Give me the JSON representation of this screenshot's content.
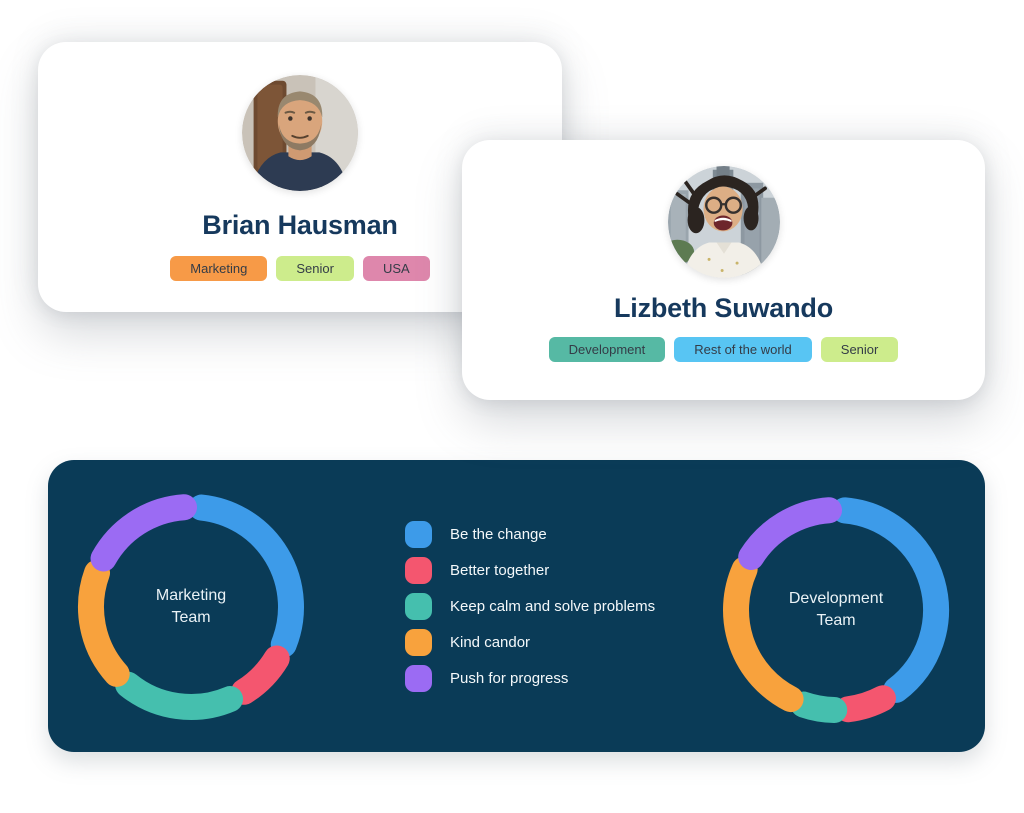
{
  "palette": {
    "blue": "#3D9BE9",
    "pink": "#F4566F",
    "teal": "#45BFAE",
    "orange": "#F8A23D",
    "purple": "#9B6BF3",
    "panel_bg": "#0A3B57",
    "name_color": "#16395D"
  },
  "cards": [
    {
      "name": "Brian Hausman",
      "avatar": "man-with-beard-portrait",
      "tags": [
        {
          "label": "Marketing",
          "color": "#F79A47"
        },
        {
          "label": "Senior",
          "color": "#CDEC8C"
        },
        {
          "label": "USA",
          "color": "#DE87AC"
        }
      ]
    },
    {
      "name": "Lizbeth Suwando",
      "avatar": "laughing-woman-city-portrait",
      "tags": [
        {
          "label": "Development",
          "color": "#56B9A4"
        },
        {
          "label": "Rest of the world",
          "color": "#58C5F3"
        },
        {
          "label": "Senior",
          "color": "#CDEC8C"
        }
      ]
    }
  ],
  "panel": {
    "legend": [
      {
        "label": "Be the change",
        "color": "blue"
      },
      {
        "label": "Better together",
        "color": "pink"
      },
      {
        "label": "Keep calm and solve problems",
        "color": "teal"
      },
      {
        "label": "Kind candor",
        "color": "orange"
      },
      {
        "label": "Push for progress",
        "color": "purple"
      }
    ]
  },
  "chart_data": [
    {
      "type": "donut",
      "title": "Marketing Team",
      "title_lines": [
        "Marketing",
        "Team"
      ],
      "legend_position": "right-of-chart",
      "segments": [
        {
          "label": "Be the change",
          "color": "blue",
          "start_deg": 6,
          "end_deg": 112
        },
        {
          "label": "Better together",
          "color": "pink",
          "start_deg": 121,
          "end_deg": 148
        },
        {
          "label": "Keep calm and solve problems",
          "color": "teal",
          "start_deg": 157,
          "end_deg": 219
        },
        {
          "label": "Kind candor",
          "color": "orange",
          "start_deg": 228,
          "end_deg": 290
        },
        {
          "label": "Push for progress",
          "color": "purple",
          "start_deg": 299,
          "end_deg": 356
        }
      ]
    },
    {
      "type": "donut",
      "title": "Development Team",
      "title_lines": [
        "Development",
        "Team"
      ],
      "legend_position": "left-of-chart",
      "segments": [
        {
          "label": "Be the change",
          "color": "blue",
          "start_deg": 5,
          "end_deg": 143
        },
        {
          "label": "Better together",
          "color": "pink",
          "start_deg": 152,
          "end_deg": 173
        },
        {
          "label": "Keep calm and solve problems",
          "color": "teal",
          "start_deg": 181,
          "end_deg": 199
        },
        {
          "label": "Kind candor",
          "color": "orange",
          "start_deg": 207,
          "end_deg": 294
        },
        {
          "label": "Push for progress",
          "color": "purple",
          "start_deg": 302,
          "end_deg": 356
        }
      ]
    }
  ]
}
